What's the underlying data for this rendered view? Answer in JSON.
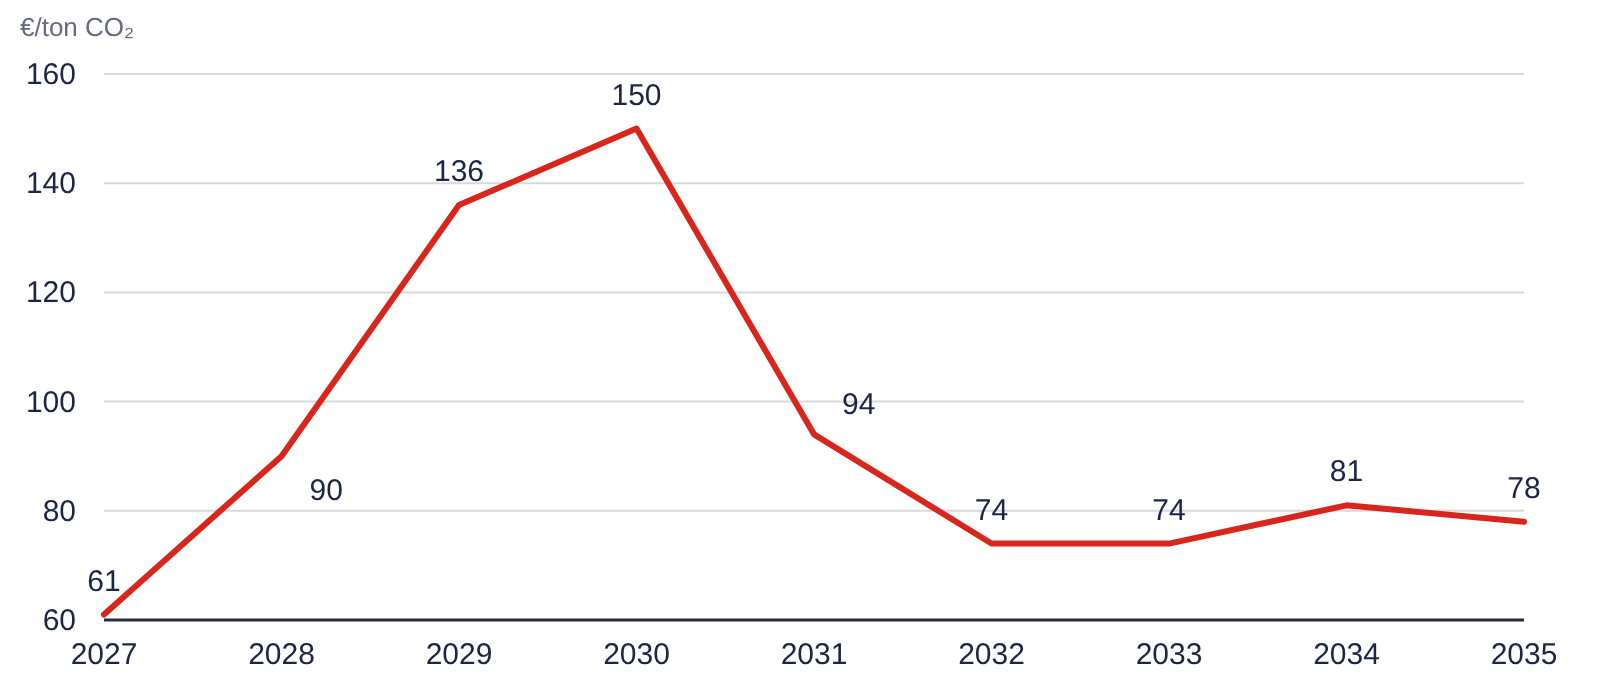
{
  "chart_data": {
    "type": "line",
    "ylabel": "€/ton CO₂",
    "x": [
      2027,
      2028,
      2029,
      2030,
      2031,
      2032,
      2033,
      2034,
      2035
    ],
    "series": [
      {
        "color": "#d9261c",
        "values": [
          61,
          90,
          136,
          150,
          94,
          74,
          74,
          81,
          78
        ]
      }
    ],
    "xlim": [
      2027,
      2035
    ],
    "xticks": [
      2027,
      2028,
      2029,
      2030,
      2031,
      2032,
      2033,
      2034,
      2035
    ],
    "ylim": [
      60,
      160
    ],
    "yticks": [
      60,
      80,
      100,
      120,
      140,
      160
    ],
    "grid": "y",
    "data_labels": true,
    "marker": "none",
    "line_style": "solid"
  }
}
